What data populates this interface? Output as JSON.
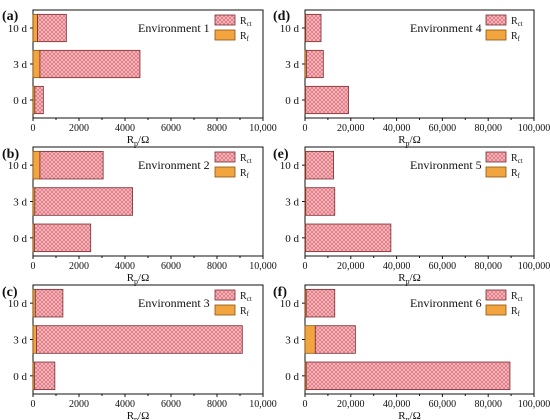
{
  "chart_data": [
    {
      "type": "bar",
      "orientation": "horizontal",
      "stacked": true,
      "panel_label": "(a)",
      "environment_label": "Environment 1",
      "categories": [
        "10 d",
        "3 d",
        "0 d"
      ],
      "series": [
        {
          "name": "Rf",
          "color": "#f2a43e",
          "values": [
            200,
            300,
            80
          ]
        },
        {
          "name": "Rct",
          "color": "#f2b1b6",
          "values": [
            1250,
            4350,
            370
          ]
        }
      ],
      "xticks": [
        "0",
        "2000",
        "4000",
        "6000",
        "8000",
        "10,000"
      ],
      "xlim": [
        0,
        10000
      ],
      "xlabel_main": "R",
      "xlabel_sub": "p",
      "xlabel_tail": "/Ω",
      "legend": "top-right"
    },
    {
      "type": "bar",
      "orientation": "horizontal",
      "stacked": true,
      "panel_label": "(b)",
      "environment_label": "Environment 2",
      "categories": [
        "10 d",
        "3 d",
        "0 d"
      ],
      "series": [
        {
          "name": "Rf",
          "color": "#f2a43e",
          "values": [
            300,
            80,
            60
          ]
        },
        {
          "name": "Rct",
          "color": "#f2b1b6",
          "values": [
            2750,
            4250,
            2450
          ]
        }
      ],
      "xticks": [
        "0",
        "2000",
        "4000",
        "6000",
        "8000",
        "10,000"
      ],
      "xlim": [
        0,
        10000
      ],
      "xlabel_main": "R",
      "xlabel_sub": "p",
      "xlabel_tail": "/Ω",
      "legend": "top-right"
    },
    {
      "type": "bar",
      "orientation": "horizontal",
      "stacked": true,
      "panel_label": "(c)",
      "environment_label": "Environment 3",
      "categories": [
        "10 d",
        "3 d",
        "0 d"
      ],
      "series": [
        {
          "name": "Rf",
          "color": "#f2a43e",
          "values": [
            100,
            150,
            60
          ]
        },
        {
          "name": "Rct",
          "color": "#f2b1b6",
          "values": [
            1200,
            8950,
            890
          ]
        }
      ],
      "xticks": [
        "0",
        "2000",
        "4000",
        "6000",
        "8000",
        "10,000"
      ],
      "xlim": [
        0,
        10000
      ],
      "xlabel_main": "R",
      "xlabel_sub": "p",
      "xlabel_tail": "/Ω",
      "legend": "top-right"
    },
    {
      "type": "bar",
      "orientation": "horizontal",
      "stacked": true,
      "panel_label": "(d)",
      "environment_label": "Environment 4",
      "categories": [
        "10 d",
        "3 d",
        "0 d"
      ],
      "series": [
        {
          "name": "Rf",
          "color": "#f2a43e",
          "values": [
            300,
            600,
            200
          ]
        },
        {
          "name": "Rct",
          "color": "#f2b1b6",
          "values": [
            6700,
            7400,
            18800
          ]
        }
      ],
      "xticks": [
        "0",
        "20,000",
        "40,000",
        "60,000",
        "80,000",
        "100,000"
      ],
      "xlim": [
        0,
        100000
      ],
      "xlabel_main": "R",
      "xlabel_sub": "p",
      "xlabel_tail": "/Ω",
      "legend": "top-right"
    },
    {
      "type": "bar",
      "orientation": "horizontal",
      "stacked": true,
      "panel_label": "(e)",
      "environment_label": "Environment 5",
      "categories": [
        "10 d",
        "3 d",
        "0 d"
      ],
      "series": [
        {
          "name": "Rf",
          "color": "#f2a43e",
          "values": [
            300,
            300,
            200
          ]
        },
        {
          "name": "Rct",
          "color": "#f2b1b6",
          "values": [
            12200,
            12700,
            37300
          ]
        }
      ],
      "xticks": [
        "0",
        "20,000",
        "40,000",
        "60,000",
        "80,000",
        "100,000"
      ],
      "xlim": [
        0,
        100000
      ],
      "xlabel_main": "R",
      "xlabel_sub": "p",
      "xlabel_tail": "/Ω",
      "legend": "top-right"
    },
    {
      "type": "bar",
      "orientation": "horizontal",
      "stacked": true,
      "panel_label": "(f)",
      "environment_label": "Environment 6",
      "categories": [
        "10 d",
        "3 d",
        "0 d"
      ],
      "series": [
        {
          "name": "Rf",
          "color": "#f2a43e",
          "values": [
            500,
            4500,
            500
          ]
        },
        {
          "name": "Rct",
          "color": "#f2b1b6",
          "values": [
            12500,
            17500,
            89000
          ]
        }
      ],
      "xticks": [
        "0",
        "20,000",
        "40,000",
        "60,000",
        "80,000",
        "100,000"
      ],
      "xlim": [
        0,
        100000
      ],
      "xlabel_main": "R",
      "xlabel_sub": "p",
      "xlabel_tail": "/Ω",
      "legend": "top-right"
    }
  ],
  "legend_entries": [
    {
      "main": "R",
      "sub": "ct",
      "color": "#f2b1b6"
    },
    {
      "main": "R",
      "sub": "f",
      "color": "#f2a43e"
    }
  ]
}
